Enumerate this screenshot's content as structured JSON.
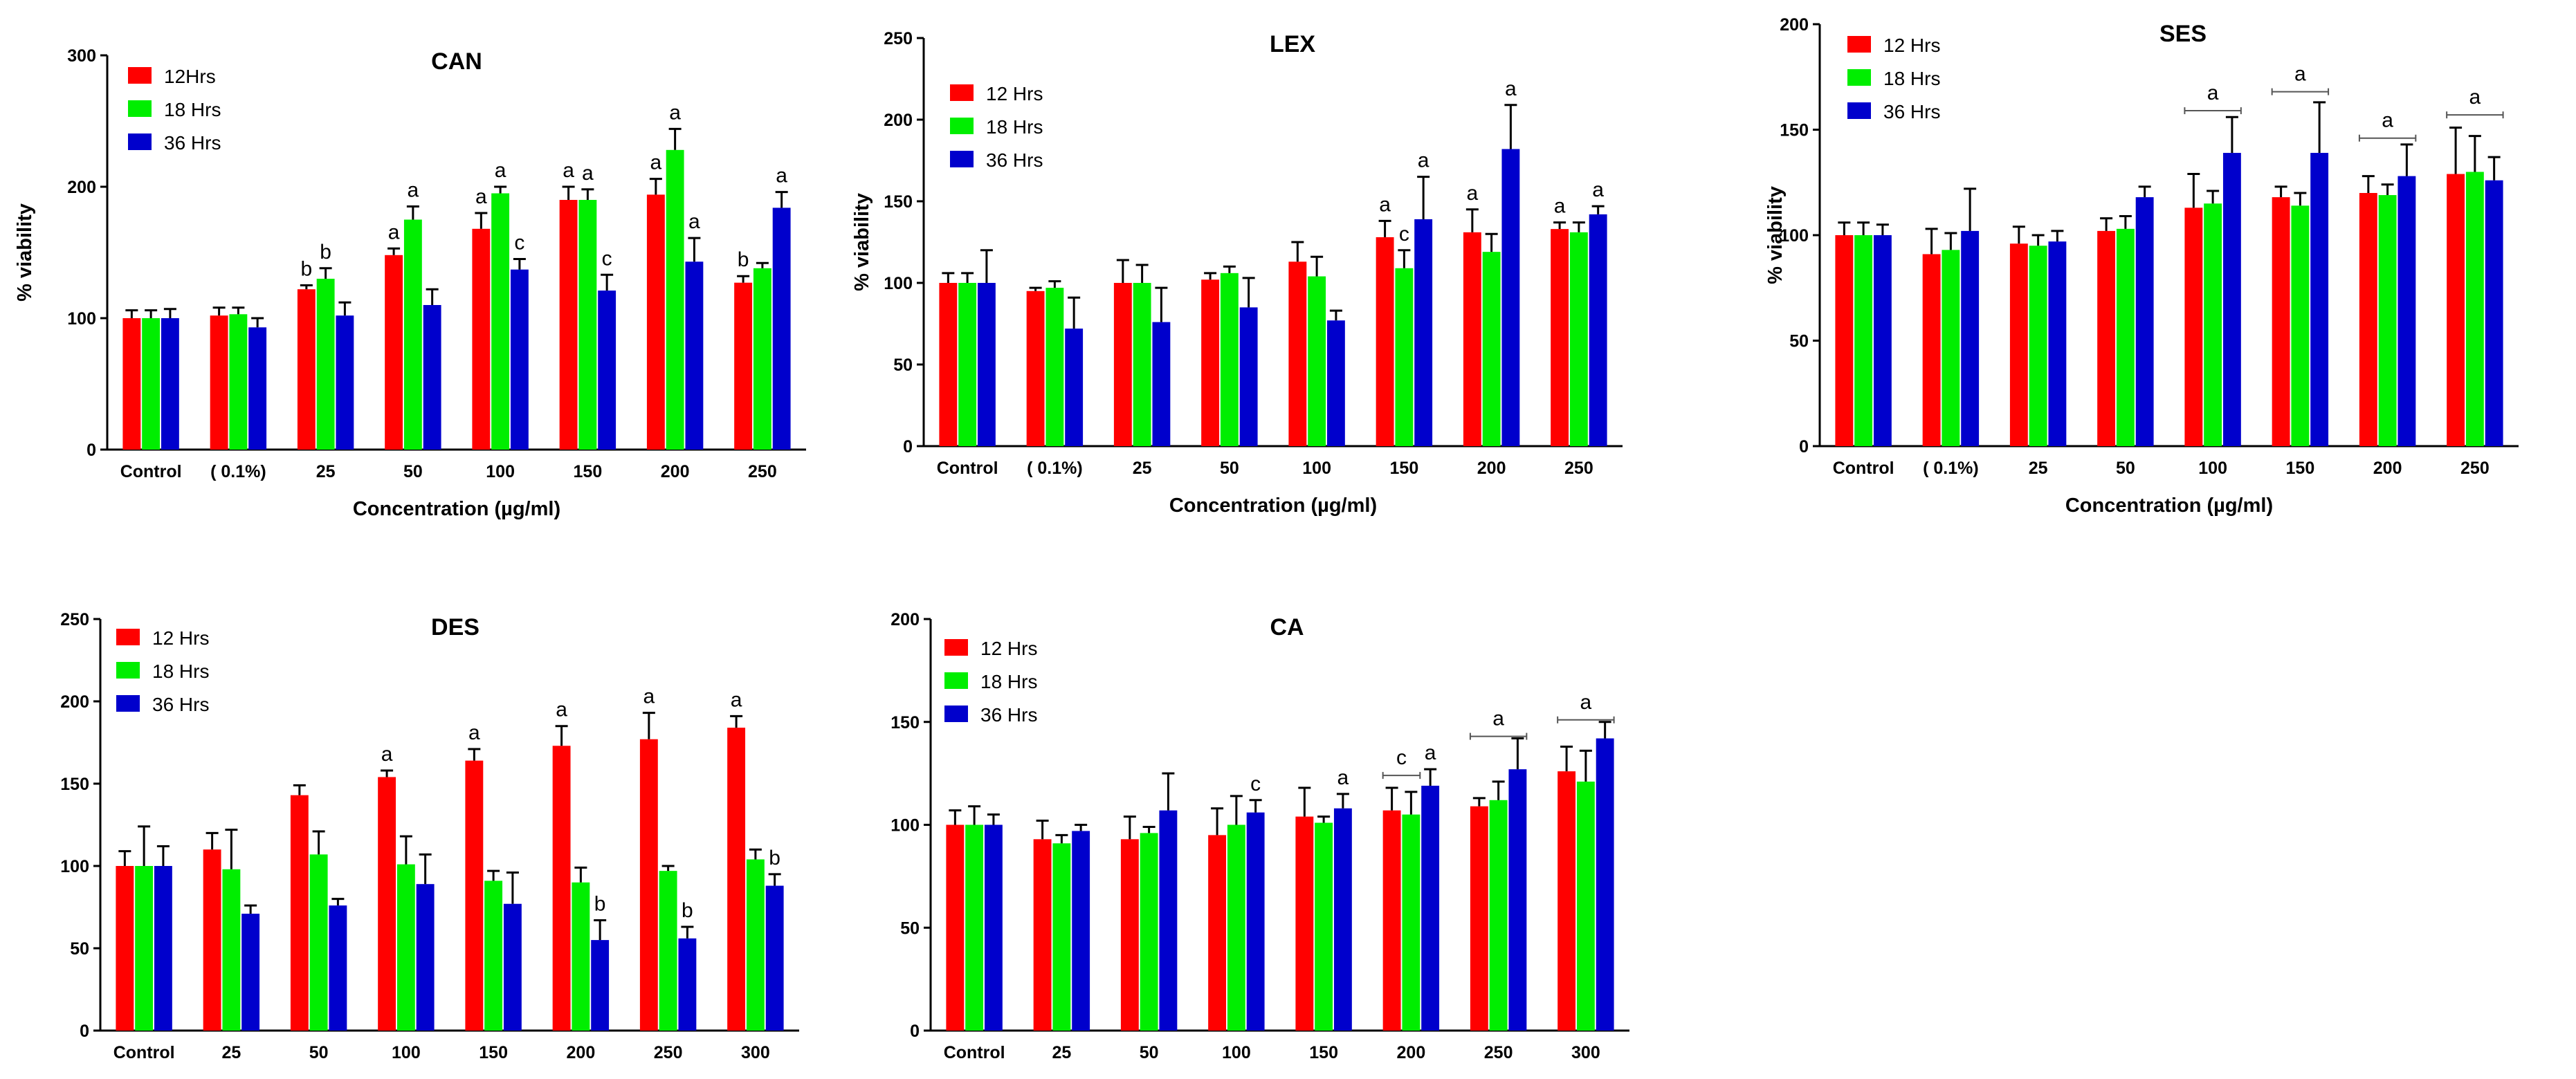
{
  "colors": {
    "s12": "#ff0000",
    "s18": "#00ee00",
    "s36": "#0000cc",
    "axis": "#000000"
  },
  "chart_data": [
    {
      "type": "bar",
      "title": "CAN",
      "xlabel": "Concentration (µg/ml)",
      "ylabel": "% viability",
      "ylim": [
        0,
        300
      ],
      "yticks": [
        0,
        100,
        200,
        300
      ],
      "categories": [
        "Control",
        "( 0.1%)",
        "25",
        "50",
        "100",
        "150",
        "200",
        "250"
      ],
      "series": [
        {
          "name": "12Hrs",
          "values": [
            100,
            102,
            122,
            148,
            168,
            190,
            194,
            127
          ],
          "errors": [
            6,
            6,
            3,
            5,
            12,
            10,
            12,
            5
          ]
        },
        {
          "name": "18 Hrs",
          "values": [
            100,
            103,
            130,
            175,
            195,
            190,
            228,
            138
          ],
          "errors": [
            6,
            5,
            8,
            10,
            5,
            8,
            16,
            4
          ]
        },
        {
          "name": "36 Hrs",
          "values": [
            100,
            93,
            102,
            110,
            137,
            121,
            143,
            184
          ],
          "errors": [
            7,
            7,
            10,
            12,
            8,
            12,
            18,
            12
          ]
        }
      ],
      "annotations": [
        {
          "text": "b",
          "cat": 2,
          "series": 0
        },
        {
          "text": "b",
          "cat": 2,
          "series": 1
        },
        {
          "text": "a",
          "cat": 3,
          "series": 0
        },
        {
          "text": "a",
          "cat": 3,
          "series": 1
        },
        {
          "text": "a",
          "cat": 4,
          "series": 0
        },
        {
          "text": "a",
          "cat": 4,
          "series": 1
        },
        {
          "text": "c",
          "cat": 4,
          "series": 2
        },
        {
          "text": "a",
          "cat": 5,
          "series": 0
        },
        {
          "text": "a",
          "cat": 5,
          "series": 1
        },
        {
          "text": "c",
          "cat": 5,
          "series": 2
        },
        {
          "text": "a",
          "cat": 6,
          "series": 0
        },
        {
          "text": "a",
          "cat": 6,
          "series": 1
        },
        {
          "text": "a",
          "cat": 6,
          "series": 2
        },
        {
          "text": "b",
          "cat": 7,
          "series": 0
        },
        {
          "text": "a",
          "cat": 7,
          "series": 2
        }
      ],
      "brackets": []
    },
    {
      "type": "bar",
      "title": "LEX",
      "xlabel": "Concentration (µg/ml)",
      "ylabel": "% viability",
      "ylim": [
        0,
        250
      ],
      "yticks": [
        0,
        50,
        100,
        150,
        200,
        250
      ],
      "categories": [
        "Control",
        "( 0.1%)",
        "25",
        "50",
        "100",
        "150",
        "200",
        "250"
      ],
      "series": [
        {
          "name": "12 Hrs",
          "values": [
            100,
            95,
            100,
            102,
            113,
            128,
            131,
            133
          ],
          "errors": [
            6,
            2,
            14,
            4,
            12,
            10,
            14,
            4
          ]
        },
        {
          "name": "18 Hrs",
          "values": [
            100,
            97,
            100,
            106,
            104,
            109,
            119,
            131
          ],
          "errors": [
            6,
            4,
            11,
            4,
            12,
            11,
            11,
            6
          ]
        },
        {
          "name": "36 Hrs",
          "values": [
            100,
            72,
            76,
            85,
            77,
            139,
            182,
            142
          ],
          "errors": [
            20,
            19,
            21,
            18,
            6,
            26,
            27,
            5
          ]
        }
      ],
      "annotations": [
        {
          "text": "a",
          "cat": 5,
          "series": 0
        },
        {
          "text": "c",
          "cat": 5,
          "series": 1
        },
        {
          "text": "a",
          "cat": 5,
          "series": 2
        },
        {
          "text": "a",
          "cat": 6,
          "series": 0
        },
        {
          "text": "a",
          "cat": 6,
          "series": 2
        },
        {
          "text": "a",
          "cat": 7,
          "series": 0
        },
        {
          "text": "a",
          "cat": 7,
          "series": 2
        }
      ],
      "brackets": []
    },
    {
      "type": "bar",
      "title": "SES",
      "xlabel": "Concentration (µg/ml)",
      "ylabel": "% viability",
      "ylim": [
        0,
        200
      ],
      "yticks": [
        0,
        50,
        100,
        150,
        200
      ],
      "categories": [
        "Control",
        "( 0.1%)",
        "25",
        "50",
        "100",
        "150",
        "200",
        "250"
      ],
      "series": [
        {
          "name": "12 Hrs",
          "values": [
            100,
            91,
            96,
            102,
            113,
            118,
            120,
            129
          ],
          "errors": [
            6,
            12,
            8,
            6,
            16,
            5,
            8,
            22
          ]
        },
        {
          "name": "18 Hrs",
          "values": [
            100,
            93,
            95,
            103,
            115,
            114,
            119,
            130
          ],
          "errors": [
            6,
            8,
            5,
            6,
            6,
            6,
            5,
            17
          ]
        },
        {
          "name": "36 Hrs",
          "values": [
            100,
            102,
            97,
            118,
            139,
            139,
            128,
            126
          ],
          "errors": [
            5,
            20,
            5,
            5,
            17,
            24,
            15,
            11
          ]
        }
      ],
      "annotations": [],
      "brackets": [
        {
          "text": "a",
          "cat": 4,
          "level": 159
        },
        {
          "text": "a",
          "cat": 5,
          "level": 168
        },
        {
          "text": "a",
          "cat": 6,
          "level": 146
        },
        {
          "text": "a",
          "cat": 7,
          "level": 157
        }
      ]
    },
    {
      "type": "bar",
      "title": "DES",
      "xlabel": "",
      "ylabel": "",
      "ylim": [
        0,
        250
      ],
      "yticks": [
        0,
        50,
        100,
        150,
        200,
        250
      ],
      "categories": [
        "Control",
        "25",
        "50",
        "100",
        "150",
        "200",
        "250",
        "300"
      ],
      "series": [
        {
          "name": "12 Hrs",
          "values": [
            100,
            110,
            143,
            154,
            164,
            173,
            177,
            184
          ],
          "errors": [
            9,
            10,
            6,
            4,
            7,
            12,
            16,
            7
          ]
        },
        {
          "name": "18 Hrs",
          "values": [
            100,
            98,
            107,
            101,
            91,
            90,
            97,
            104
          ],
          "errors": [
            24,
            24,
            14,
            17,
            6,
            9,
            3,
            6
          ]
        },
        {
          "name": "36 Hrs",
          "values": [
            100,
            71,
            76,
            89,
            77,
            55,
            56,
            88
          ],
          "errors": [
            12,
            5,
            4,
            18,
            19,
            12,
            7,
            7
          ]
        }
      ],
      "annotations": [
        {
          "text": "a",
          "cat": 3,
          "series": 0
        },
        {
          "text": "a",
          "cat": 4,
          "series": 0
        },
        {
          "text": "a",
          "cat": 5,
          "series": 0
        },
        {
          "text": "b",
          "cat": 5,
          "series": 2
        },
        {
          "text": "a",
          "cat": 6,
          "series": 0
        },
        {
          "text": "b",
          "cat": 6,
          "series": 2
        },
        {
          "text": "a",
          "cat": 7,
          "series": 0
        },
        {
          "text": "b",
          "cat": 7,
          "series": 2
        }
      ],
      "brackets": []
    },
    {
      "type": "bar",
      "title": "CA",
      "xlabel": "",
      "ylabel": "",
      "ylim": [
        0,
        200
      ],
      "yticks": [
        0,
        50,
        100,
        150,
        200
      ],
      "categories": [
        "Control",
        "25",
        "50",
        "100",
        "150",
        "200",
        "250",
        "300"
      ],
      "series": [
        {
          "name": "12 Hrs",
          "values": [
            100,
            93,
            93,
            95,
            104,
            107,
            109,
            126
          ],
          "errors": [
            7,
            9,
            11,
            13,
            14,
            11,
            4,
            12
          ]
        },
        {
          "name": "18 Hrs",
          "values": [
            100,
            91,
            96,
            100,
            101,
            105,
            112,
            121
          ],
          "errors": [
            9,
            4,
            3,
            14,
            3,
            11,
            9,
            15
          ]
        },
        {
          "name": "36 Hrs",
          "values": [
            100,
            97,
            107,
            106,
            108,
            119,
            127,
            142
          ],
          "errors": [
            5,
            3,
            18,
            6,
            7,
            8,
            15,
            8
          ]
        }
      ],
      "annotations": [
        {
          "text": "c",
          "cat": 3,
          "series": 2
        },
        {
          "text": "a",
          "cat": 4,
          "series": 2
        },
        {
          "text": "a",
          "cat": 5,
          "series": 2
        }
      ],
      "brackets": [
        {
          "text": "c",
          "cat": 5,
          "level": 124,
          "span": "12-18"
        },
        {
          "text": "a",
          "cat": 6,
          "level": 143
        },
        {
          "text": "a",
          "cat": 7,
          "level": 151
        }
      ]
    }
  ]
}
